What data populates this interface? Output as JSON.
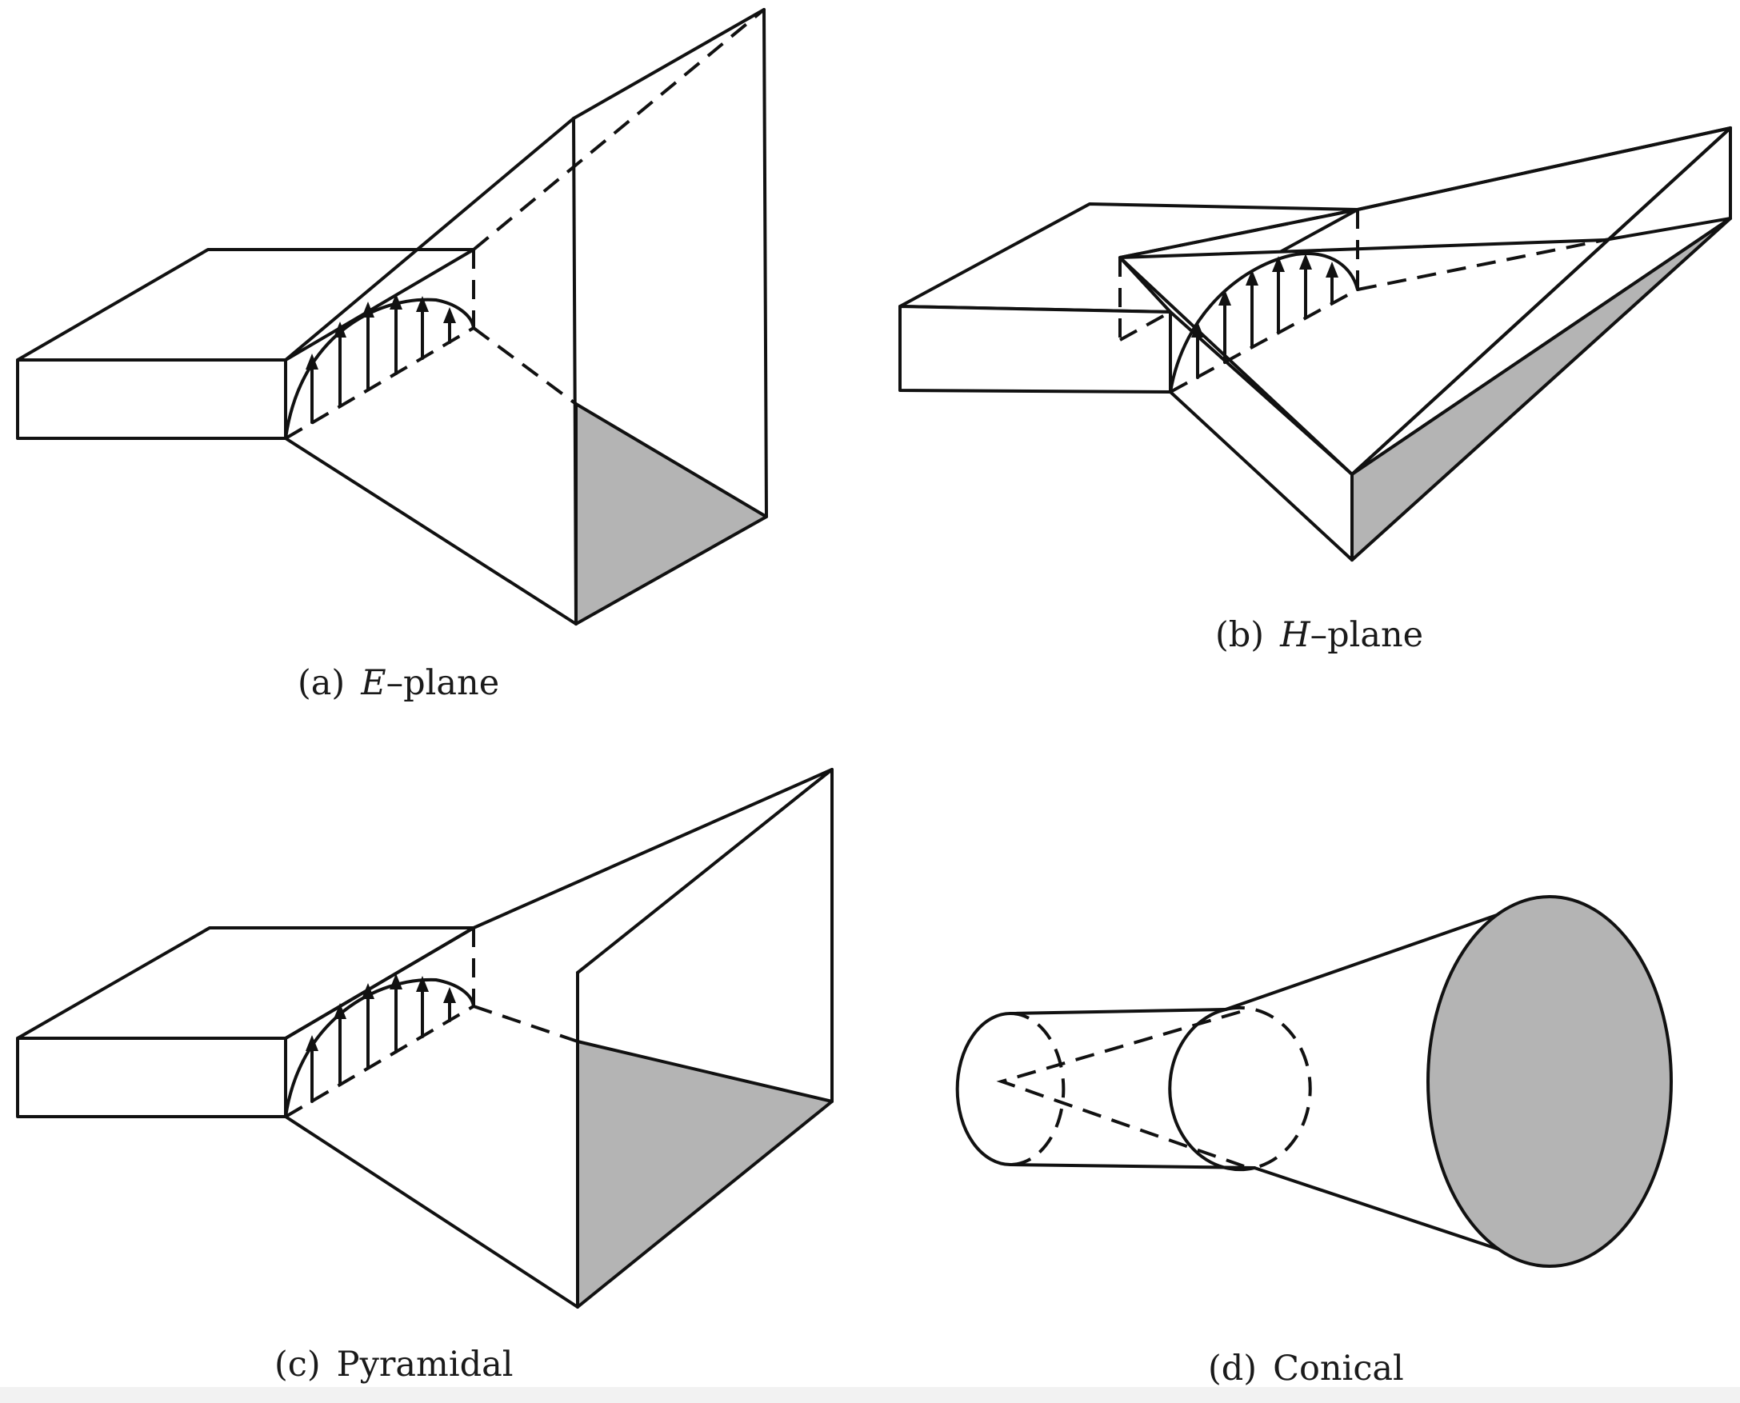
{
  "figure": {
    "panels": [
      {
        "id": "a",
        "caption_prefix": "(a)",
        "caption_var": "E",
        "caption_suffix": "–plane",
        "name": "E-plane horn"
      },
      {
        "id": "b",
        "caption_prefix": "(b)",
        "caption_var": "H",
        "caption_suffix": "–plane",
        "name": "H-plane horn"
      },
      {
        "id": "c",
        "caption_prefix": "(c)",
        "caption_var": "",
        "caption_suffix": "Pyramidal",
        "name": "Pyramidal horn"
      },
      {
        "id": "d",
        "caption_prefix": "(d)",
        "caption_var": "",
        "caption_suffix": "Conical",
        "name": "Conical horn"
      }
    ],
    "colors": {
      "line": "#111111",
      "aperture_shade": "#b4b4b4",
      "background": "#ffffff"
    }
  }
}
